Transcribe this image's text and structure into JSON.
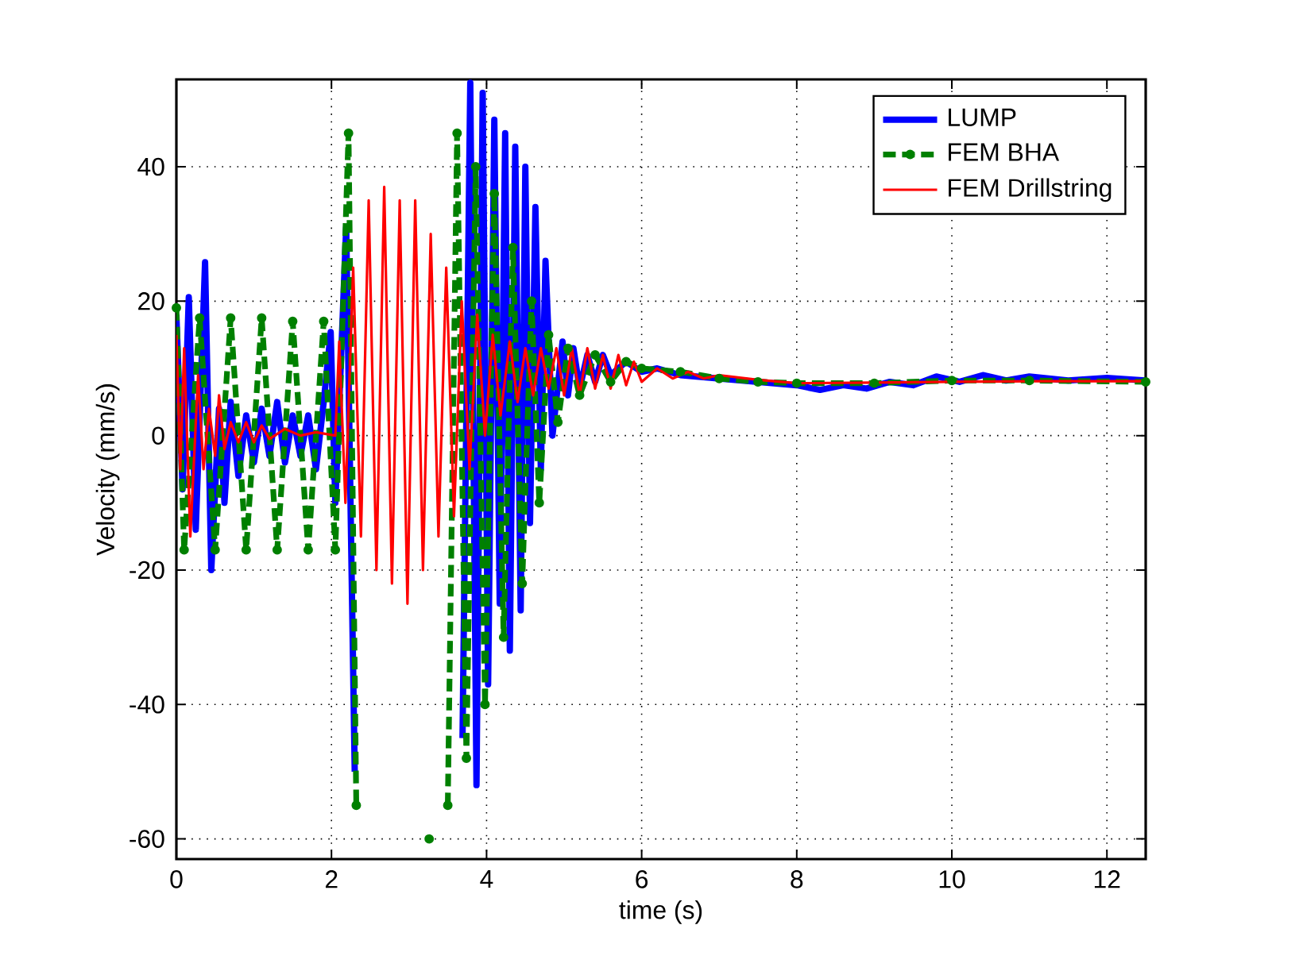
{
  "chart_data": {
    "type": "line",
    "xlabel": "time (s)",
    "ylabel": "Velocity (mm/s)",
    "xlim": [
      0,
      12.5
    ],
    "ylim": [
      -63,
      53
    ],
    "xticks": [
      0,
      2,
      4,
      6,
      8,
      10,
      12
    ],
    "yticks": [
      -60,
      -40,
      -20,
      0,
      20,
      40
    ],
    "grid": true,
    "legend": "top right",
    "series": [
      {
        "name": "LUMP",
        "color": "#0000ff",
        "line_style": "solid",
        "x": [
          0,
          0.08,
          0.16,
          0.25,
          0.37,
          0.45,
          0.55,
          0.62,
          0.7,
          0.8,
          0.9,
          1.0,
          1.1,
          1.2,
          1.3,
          1.4,
          1.5,
          1.6,
          1.7,
          1.8,
          1.9,
          1.99,
          2.05,
          2.19,
          2.3,
          2.4,
          2.5,
          2.6,
          2.7,
          2.8,
          2.9,
          3.0,
          3.1,
          3.2,
          3.3,
          3.4,
          3.5,
          3.6,
          3.69,
          3.79,
          3.87,
          3.95,
          4.02,
          4.1,
          4.17,
          4.24,
          4.3,
          4.37,
          4.44,
          4.5,
          4.56,
          4.63,
          4.7,
          4.76,
          4.85,
          4.98,
          5.05,
          5.12,
          5.2,
          5.3,
          5.4,
          5.5,
          5.6,
          5.8,
          6.0,
          6.2,
          6.5,
          7.0,
          7.5,
          8.0,
          8.3,
          8.6,
          8.9,
          9.2,
          9.5,
          9.8,
          10.1,
          10.4,
          10.7,
          11.0,
          11.5,
          12.0,
          12.5
        ],
        "values": [
          18,
          -8,
          20.6,
          -14,
          25.8,
          -20,
          4,
          -10,
          5,
          -6,
          3,
          -4,
          4,
          -3,
          5,
          -4,
          3,
          -3,
          3,
          -5,
          5,
          15.4,
          -10,
          31,
          -50,
          null,
          null,
          null,
          null,
          null,
          null,
          null,
          null,
          null,
          null,
          null,
          null,
          null,
          -45,
          52.5,
          -52,
          51,
          -37,
          47,
          -25,
          45,
          -32,
          43,
          -26,
          40,
          -13,
          34,
          -5,
          26,
          0,
          14,
          6,
          13,
          7,
          12,
          8,
          12,
          9,
          11,
          9.5,
          10,
          9,
          8.5,
          8,
          7.5,
          6.8,
          7.5,
          7,
          8,
          7.5,
          8.8,
          8,
          9,
          8.2,
          8.8,
          8.2,
          8.6,
          8.2
        ]
      },
      {
        "name": "FEM BHA",
        "color": "#008000",
        "line_style": "dashed",
        "marker": "circle",
        "x": [
          0,
          0.1,
          0.3,
          0.5,
          0.7,
          0.9,
          1.1,
          1.3,
          1.5,
          1.7,
          1.9,
          2.05,
          2.22,
          2.32,
          2.42,
          2.54,
          2.66,
          2.78,
          2.9,
          3.02,
          3.14,
          3.26,
          3.38,
          3.5,
          3.62,
          3.74,
          3.86,
          3.98,
          4.1,
          4.22,
          4.34,
          4.46,
          4.58,
          4.68,
          4.8,
          4.92,
          5.05,
          5.2,
          5.4,
          5.6,
          5.8,
          6.0,
          6.5,
          7.0,
          7.5,
          8.0,
          9.0,
          10.0,
          11.0,
          12.5
        ],
        "values": [
          19,
          -17,
          17.5,
          -17,
          17.5,
          -17,
          17.5,
          -17,
          17,
          -17,
          17,
          -17,
          45,
          -55,
          null,
          null,
          null,
          null,
          null,
          null,
          null,
          -60,
          null,
          -55,
          45,
          -48,
          40,
          -40,
          36,
          -30,
          28,
          -22,
          20,
          -10,
          15,
          2,
          13,
          6,
          12,
          8,
          11,
          10,
          9.5,
          8.5,
          8,
          7.8,
          7.8,
          8.2,
          8.2,
          8
        ]
      },
      {
        "name": "FEM Drillstring",
        "color": "#ff0000",
        "line_style": "solid",
        "x": [
          0,
          0.05,
          0.1,
          0.18,
          0.28,
          0.35,
          0.42,
          0.5,
          0.55,
          0.62,
          0.7,
          0.8,
          0.9,
          1.0,
          1.1,
          1.2,
          1.4,
          1.6,
          1.8,
          2.05,
          2.1,
          2.18,
          2.28,
          2.38,
          2.48,
          2.58,
          2.68,
          2.78,
          2.88,
          2.98,
          3.08,
          3.18,
          3.28,
          3.38,
          3.48,
          3.58,
          3.68,
          3.78,
          3.88,
          3.98,
          4.08,
          4.18,
          4.3,
          4.4,
          4.5,
          4.6,
          4.7,
          4.8,
          4.9,
          5.0,
          5.1,
          5.2,
          5.3,
          5.4,
          5.5,
          5.6,
          5.7,
          5.8,
          5.9,
          6.0,
          6.2,
          6.4,
          6.6,
          6.8,
          7.0,
          7.5,
          8.0,
          9.0,
          10.0,
          11.0,
          12.5
        ],
        "values": [
          15,
          -5,
          13,
          -15,
          9,
          -5,
          4,
          -3,
          6,
          -2,
          2,
          -1,
          2,
          -1,
          1.5,
          -0.5,
          1,
          0,
          0.5,
          0,
          14,
          -10,
          25,
          -15,
          35,
          -20,
          37,
          -22,
          35,
          -25,
          35,
          -20,
          30,
          -15,
          25,
          -12,
          20,
          -5,
          18,
          0,
          15,
          3,
          14,
          5,
          13,
          6,
          13,
          7,
          13,
          6,
          13,
          6,
          13,
          7,
          12,
          7,
          12,
          7.5,
          11,
          8,
          10,
          8.5,
          9.5,
          8.5,
          9,
          8.3,
          7.8,
          7.9,
          8,
          8.1,
          8.1
        ]
      }
    ]
  }
}
